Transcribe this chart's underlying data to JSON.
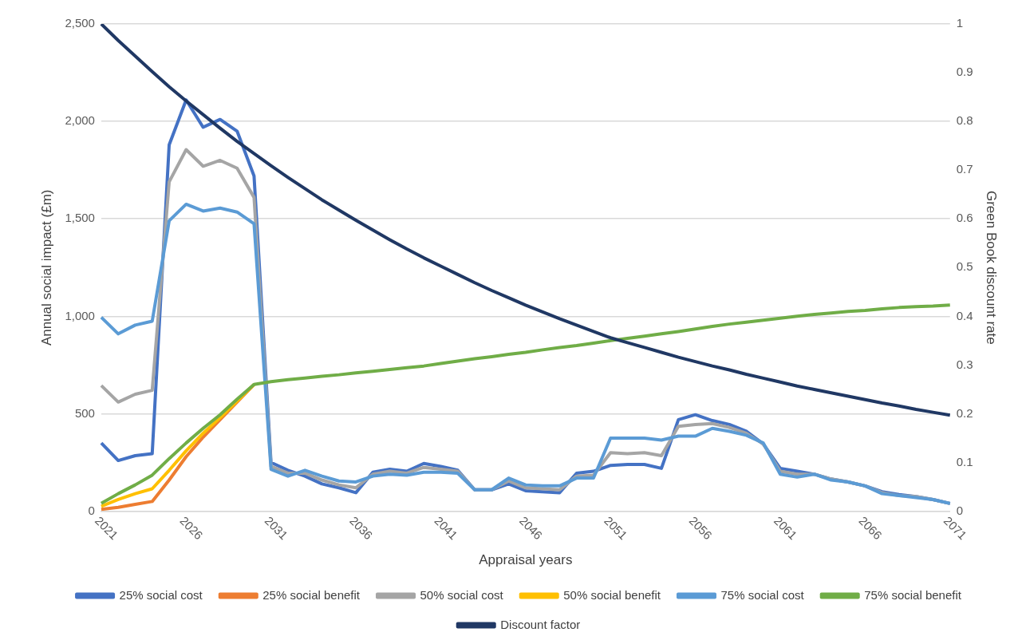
{
  "chart_data": {
    "type": "line",
    "xlabel": "Appraisal years",
    "ylabel": "Annual social impact (£m)",
    "y2label": "Green Book discount rate",
    "categories": [
      "2021",
      null,
      null,
      null,
      null,
      "2026",
      null,
      null,
      null,
      null,
      "2031",
      null,
      null,
      null,
      null,
      "2036",
      null,
      null,
      null,
      null,
      "2041",
      null,
      null,
      null,
      null,
      "2046",
      null,
      null,
      null,
      null,
      "2051",
      null,
      null,
      null,
      null,
      "2056",
      null,
      null,
      null,
      null,
      "2061",
      null,
      null,
      null,
      null,
      "2066",
      null,
      null,
      null,
      null,
      "2071"
    ],
    "ylim": [
      0,
      2500
    ],
    "yticks": [
      {
        "value": 0,
        "label": "0"
      },
      {
        "value": 500,
        "label": "500"
      },
      {
        "value": 1000,
        "label": "1,000"
      },
      {
        "value": 1500,
        "label": "1,500"
      },
      {
        "value": 2000,
        "label": "2,000"
      },
      {
        "value": 2500,
        "label": "2,500"
      }
    ],
    "y2lim": [
      0,
      1
    ],
    "y2ticks": [
      0,
      0.1,
      0.2,
      0.3,
      0.4,
      0.5,
      0.6,
      0.7,
      0.8,
      0.9,
      1
    ],
    "grid": "y",
    "legend": "bottom",
    "marker": "none",
    "line_style": "solid",
    "series": [
      {
        "name": "25% social cost",
        "color": "#4472c4",
        "values": [
          350,
          260,
          285,
          295,
          1880,
          2110,
          1970,
          2010,
          1950,
          1720,
          250,
          210,
          180,
          140,
          120,
          95,
          200,
          215,
          205,
          245,
          230,
          210,
          110,
          110,
          140,
          105,
          100,
          95,
          195,
          205,
          235,
          240,
          240,
          220,
          470,
          495,
          465,
          445,
          410,
          345,
          220,
          205,
          190,
          165,
          150,
          130,
          100,
          85,
          75,
          60,
          40
        ]
      },
      {
        "name": "25% social benefit",
        "color": "#ed7d31",
        "values": [
          10,
          20,
          35,
          50,
          160,
          280,
          380,
          470,
          560,
          650,
          null,
          null,
          null,
          null,
          null,
          null,
          null,
          null,
          null,
          null,
          null,
          null,
          null,
          null,
          null,
          null,
          null,
          null,
          null,
          null,
          null,
          null,
          null,
          null,
          null,
          null,
          null,
          null,
          null,
          null,
          null,
          null,
          null,
          null,
          null,
          null,
          null,
          null,
          null,
          null,
          null
        ]
      },
      {
        "name": "50% social cost",
        "color": "#a5a5a5",
        "values": [
          645,
          560,
          600,
          620,
          1690,
          1855,
          1770,
          1800,
          1760,
          1610,
          230,
          195,
          195,
          160,
          135,
          120,
          190,
          205,
          195,
          225,
          215,
          205,
          110,
          110,
          155,
          120,
          115,
          110,
          180,
          185,
          300,
          295,
          300,
          285,
          435,
          445,
          450,
          430,
          400,
          345,
          205,
          190,
          190,
          165,
          150,
          130,
          95,
          80,
          75,
          60,
          40
        ]
      },
      {
        "name": "50% social benefit",
        "color": "#ffc000",
        "values": [
          25,
          60,
          90,
          115,
          210,
          310,
          400,
          480,
          565,
          650,
          null,
          null,
          null,
          null,
          null,
          null,
          null,
          null,
          null,
          null,
          null,
          null,
          null,
          null,
          null,
          null,
          null,
          null,
          null,
          null,
          null,
          null,
          null,
          null,
          null,
          null,
          null,
          null,
          null,
          null,
          null,
          null,
          null,
          null,
          null,
          null,
          null,
          null,
          null,
          null,
          null
        ]
      },
      {
        "name": "75% social cost",
        "color": "#5b9bd5",
        "values": [
          995,
          910,
          955,
          975,
          1490,
          1575,
          1540,
          1555,
          1535,
          1475,
          215,
          180,
          210,
          180,
          155,
          150,
          180,
          190,
          185,
          200,
          200,
          195,
          110,
          110,
          170,
          135,
          130,
          130,
          170,
          170,
          375,
          375,
          375,
          365,
          385,
          385,
          425,
          410,
          390,
          350,
          190,
          175,
          190,
          160,
          150,
          130,
          90,
          80,
          70,
          60,
          40
        ]
      },
      {
        "name": "75% social benefit",
        "color": "#70ad47",
        "values": [
          40,
          90,
          135,
          185,
          270,
          350,
          425,
          495,
          575,
          650,
          665,
          675,
          683,
          692,
          700,
          710,
          718,
          727,
          736,
          745,
          758,
          770,
          782,
          793,
          805,
          815,
          828,
          840,
          850,
          862,
          875,
          887,
          898,
          910,
          922,
          935,
          948,
          960,
          970,
          980,
          990,
          1000,
          1010,
          1017,
          1025,
          1030,
          1038,
          1045,
          1050,
          1053,
          1058
        ]
      },
      {
        "name": "Discount factor",
        "color": "#203864",
        "axis": "y2",
        "values": [
          1.0,
          0.966,
          0.934,
          0.902,
          0.871,
          0.842,
          0.814,
          0.786,
          0.759,
          0.734,
          0.709,
          0.685,
          0.662,
          0.639,
          0.618,
          0.597,
          0.577,
          0.557,
          0.538,
          0.52,
          0.503,
          0.486,
          0.469,
          0.453,
          0.438,
          0.423,
          0.409,
          0.395,
          0.382,
          0.369,
          0.356,
          0.346,
          0.336,
          0.326,
          0.316,
          0.307,
          0.298,
          0.29,
          0.281,
          0.273,
          0.265,
          0.257,
          0.25,
          0.243,
          0.236,
          0.229,
          0.222,
          0.216,
          0.209,
          0.203,
          0.197
        ]
      }
    ]
  }
}
